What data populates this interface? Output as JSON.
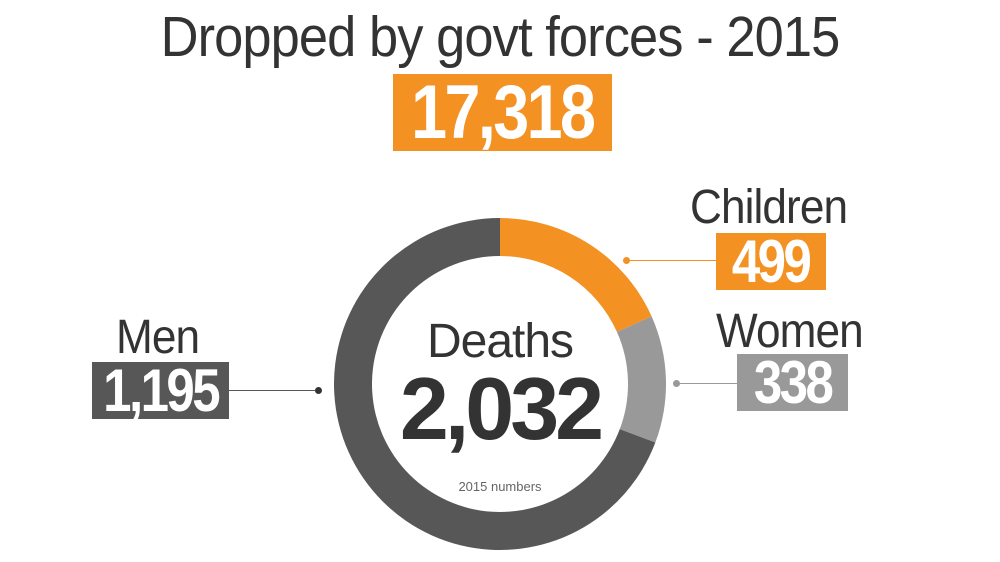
{
  "header": {
    "title": "Dropped by govt forces - 2015",
    "total": "17,318"
  },
  "center": {
    "label": "Deaths",
    "value": "2,032",
    "note": "2015 numbers"
  },
  "colors": {
    "children": "#F39122",
    "women": "#999999",
    "men": "#575757"
  },
  "chart_data": {
    "type": "pie",
    "subtype": "donut",
    "categories": [
      "Children",
      "Women",
      "Men"
    ],
    "values": [
      499,
      338,
      1195
    ],
    "labels": [
      "499",
      "338",
      "1,195"
    ],
    "total": 2032,
    "total_label": "Deaths",
    "note": "2015 numbers",
    "legend": "none"
  }
}
